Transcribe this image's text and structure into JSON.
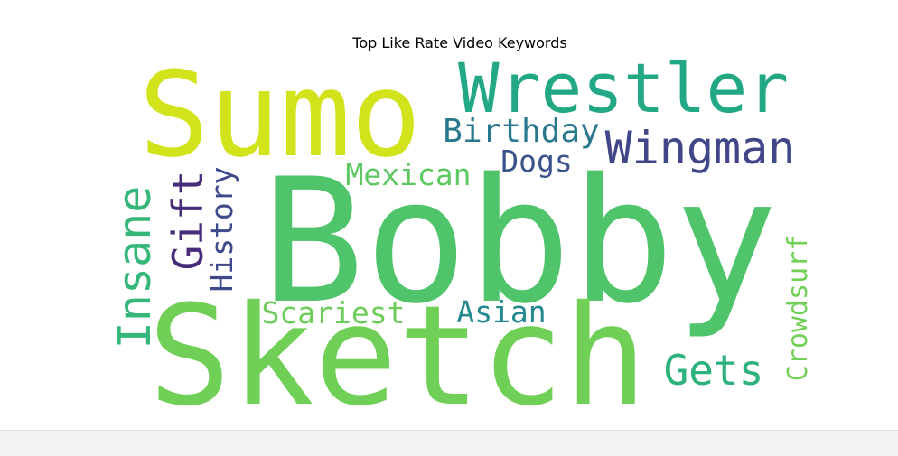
{
  "chart_data": {
    "type": "wordcloud",
    "title": "Top Like Rate Video Keywords",
    "colormap": "viridis",
    "background": "#ffffff",
    "words": [
      {
        "text": "Bobby",
        "weight": 1.0,
        "color": "#4fc46a",
        "orientation": "horizontal"
      },
      {
        "text": "Sketch",
        "weight": 0.93,
        "color": "#70cf57",
        "orientation": "horizontal"
      },
      {
        "text": "Sumo",
        "weight": 0.84,
        "color": "#d2e21b",
        "orientation": "horizontal"
      },
      {
        "text": "Wrestler",
        "weight": 0.52,
        "color": "#22a884",
        "orientation": "horizontal"
      },
      {
        "text": "Wingman",
        "weight": 0.34,
        "color": "#404688",
        "orientation": "horizontal"
      },
      {
        "text": "Insane",
        "weight": 0.34,
        "color": "#35b779",
        "orientation": "vertical"
      },
      {
        "text": "Gets",
        "weight": 0.3,
        "color": "#2db27d",
        "orientation": "horizontal"
      },
      {
        "text": "Gift",
        "weight": 0.3,
        "color": "#472c7a",
        "orientation": "vertical"
      },
      {
        "text": "Birthday",
        "weight": 0.24,
        "color": "#2a788e",
        "orientation": "horizontal"
      },
      {
        "text": "Dogs",
        "weight": 0.22,
        "color": "#3b528b",
        "orientation": "horizontal"
      },
      {
        "text": "Mexican",
        "weight": 0.22,
        "color": "#5ec962",
        "orientation": "horizontal"
      },
      {
        "text": "History",
        "weight": 0.22,
        "color": "#3e4a89",
        "orientation": "vertical"
      },
      {
        "text": "Scariest",
        "weight": 0.22,
        "color": "#6ccd5a",
        "orientation": "horizontal"
      },
      {
        "text": "Asian",
        "weight": 0.22,
        "color": "#23898e",
        "orientation": "horizontal"
      },
      {
        "text": "Crowdsurf",
        "weight": 0.2,
        "color": "#73d056",
        "orientation": "vertical"
      }
    ]
  }
}
